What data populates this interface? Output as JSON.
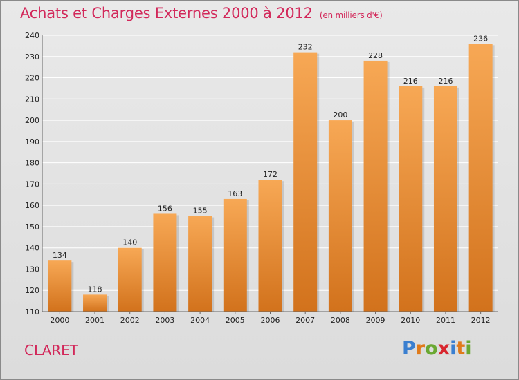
{
  "header": {
    "title": "Achats et Charges Externes 2000 à 2012",
    "unit": "(en milliers d'€)"
  },
  "footer": {
    "commune": "CLARET",
    "logo_text": "Proxiti",
    "logo_letters": [
      {
        "char": "P",
        "color": "#3a7fd0"
      },
      {
        "char": "r",
        "color": "#e07a1a"
      },
      {
        "char": "o",
        "color": "#6aa832"
      },
      {
        "char": "x",
        "color": "#d8262e"
      },
      {
        "char": "i",
        "color": "#3a7fd0"
      },
      {
        "char": "t",
        "color": "#e07a1a"
      },
      {
        "char": "i",
        "color": "#6aa832"
      }
    ]
  },
  "colors": {
    "title": "#d2285a",
    "bar_top": "#f7a855",
    "bar_bottom": "#d2721c",
    "grid": "#ffffff"
  },
  "chart_data": {
    "type": "bar",
    "title": "Achats et Charges Externes 2000 à 2012",
    "subtitle": "(en milliers d'€)",
    "categories": [
      "2000",
      "2001",
      "2002",
      "2003",
      "2004",
      "2005",
      "2006",
      "2007",
      "2008",
      "2009",
      "2010",
      "2011",
      "2012"
    ],
    "values": [
      134,
      118,
      140,
      156,
      155,
      163,
      172,
      232,
      200,
      228,
      216,
      216,
      236
    ],
    "ylim": [
      110,
      240
    ],
    "yticks": [
      110,
      120,
      130,
      140,
      150,
      160,
      170,
      180,
      190,
      200,
      210,
      220,
      230,
      240
    ],
    "grid": true,
    "xlabel": "",
    "ylabel": ""
  }
}
